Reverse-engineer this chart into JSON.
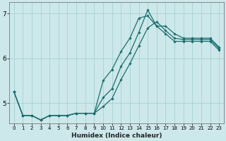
{
  "xlabel": "Humidex (Indice chaleur)",
  "bg_color": "#cde8ea",
  "grid_color": "#aad4d8",
  "line_color": "#1a6e6e",
  "xlim": [
    -0.5,
    23.5
  ],
  "ylim": [
    4.55,
    7.25
  ],
  "yticks": [
    5,
    6,
    7
  ],
  "ytick_labels": [
    "5",
    "6",
    "7"
  ],
  "xticks": [
    0,
    1,
    2,
    3,
    4,
    5,
    6,
    7,
    8,
    9,
    10,
    11,
    12,
    13,
    14,
    15,
    16,
    17,
    18,
    19,
    20,
    21,
    22,
    23
  ],
  "series": [
    {
      "x": [
        0,
        1,
        2,
        3,
        4,
        5,
        6,
        7,
        8,
        9,
        10,
        11,
        12,
        13,
        14,
        15,
        16,
        17,
        18,
        19,
        20,
        21,
        22,
        23
      ],
      "y": [
        5.25,
        4.72,
        4.72,
        4.62,
        4.72,
        4.72,
        4.72,
        4.77,
        4.77,
        4.77,
        5.5,
        5.75,
        6.15,
        6.45,
        6.9,
        6.95,
        6.72,
        6.55,
        6.38,
        6.38,
        6.38,
        6.38,
        6.38,
        6.18
      ]
    },
    {
      "x": [
        0,
        1,
        2,
        3,
        4,
        5,
        6,
        7,
        8,
        9,
        10,
        11,
        12,
        13,
        14,
        15,
        16,
        17,
        18,
        19,
        20,
        21,
        22,
        23
      ],
      "y": [
        5.25,
        4.72,
        4.72,
        4.62,
        4.72,
        4.72,
        4.72,
        4.77,
        4.77,
        4.77,
        4.92,
        5.1,
        5.52,
        5.88,
        6.28,
        6.68,
        6.82,
        6.62,
        6.45,
        6.42,
        6.42,
        6.42,
        6.42,
        6.22
      ]
    },
    {
      "x": [
        0,
        1,
        2,
        3,
        4,
        5,
        6,
        7,
        8,
        9,
        10,
        11,
        12,
        13,
        14,
        15,
        16,
        17,
        18,
        19,
        20,
        21,
        22,
        23
      ],
      "y": [
        5.25,
        4.72,
        4.72,
        4.62,
        4.72,
        4.72,
        4.72,
        4.77,
        4.77,
        4.77,
        5.12,
        5.32,
        5.82,
        6.12,
        6.58,
        7.08,
        6.72,
        6.72,
        6.55,
        6.45,
        6.45,
        6.45,
        6.45,
        6.25
      ]
    }
  ]
}
